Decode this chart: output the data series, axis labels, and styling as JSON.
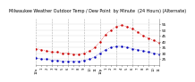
{
  "title": "Milwaukee Weather Outdoor Temp / Dew Point  by Minute  (24 Hours) (Alternate)",
  "background_color": "#ffffff",
  "grid_color": "#999999",
  "red_color": "#cc0000",
  "blue_color": "#0000bb",
  "ylim": [
    20,
    60
  ],
  "yticks": [
    25,
    30,
    35,
    40,
    45,
    50,
    55
  ],
  "xlabel_hours": [
    "12a",
    "1",
    "2",
    "3",
    "4",
    "5",
    "6",
    "7",
    "8",
    "9",
    "10",
    "11",
    "12p",
    "1",
    "2",
    "3",
    "4",
    "5",
    "6",
    "7",
    "8",
    "9",
    "10",
    "11"
  ],
  "temp_values": [
    34,
    33,
    32,
    31,
    31,
    30,
    30,
    29,
    29,
    30,
    32,
    35,
    40,
    46,
    50,
    53,
    54,
    53,
    51,
    48,
    45,
    43,
    41,
    39
  ],
  "dew_values": [
    26,
    25,
    25,
    24,
    24,
    23,
    23,
    23,
    23,
    24,
    25,
    27,
    30,
    33,
    35,
    36,
    36,
    35,
    34,
    33,
    32,
    31,
    30,
    29
  ],
  "vgrid_positions": [
    0,
    3,
    6,
    9,
    12,
    15,
    18,
    21,
    23
  ],
  "title_fontsize": 3.5,
  "tick_fontsize": 3.0,
  "linewidth": 0.7
}
